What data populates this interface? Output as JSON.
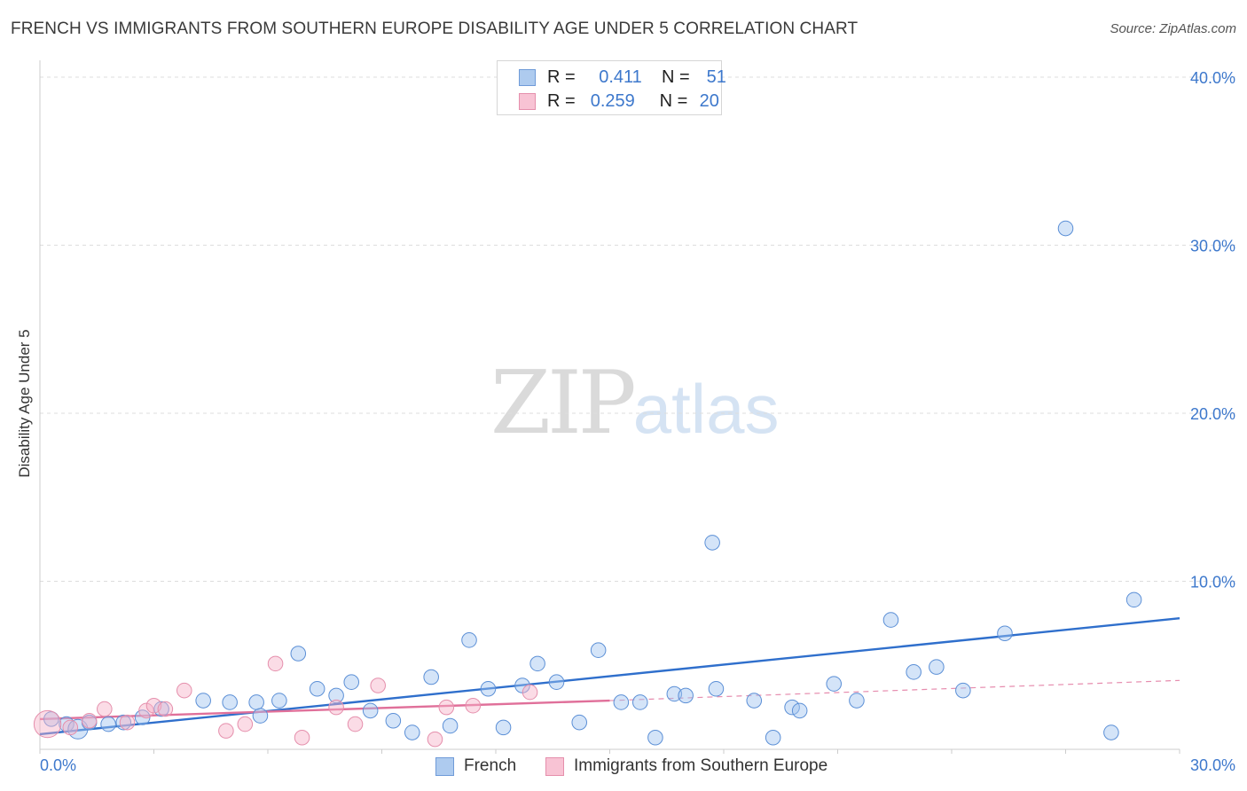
{
  "chart_data": {
    "type": "scatter",
    "title": "FRENCH VS IMMIGRANTS FROM SOUTHERN EUROPE DISABILITY AGE UNDER 5 CORRELATION CHART",
    "source": "Source: ZipAtlas.com",
    "xlabel": "",
    "ylabel": "Disability Age Under 5",
    "xlim": [
      0,
      30
    ],
    "ylim": [
      0,
      40
    ],
    "x_tick_labels": [
      "0.0%",
      "30.0%"
    ],
    "y_ticks": [
      10,
      20,
      30,
      40
    ],
    "y_tick_labels": [
      "10.0%",
      "20.0%",
      "30.0%",
      "40.0%"
    ],
    "grid": true,
    "watermark": {
      "zip": "ZIP",
      "atlas": "atlas"
    },
    "legend_top": [
      {
        "r_label": "R =",
        "r_value": "0.411",
        "n_label": "N =",
        "n_value": "51"
      },
      {
        "r_label": "R =",
        "r_value": "0.259",
        "n_label": "N =",
        "n_value": "20"
      }
    ],
    "series": [
      {
        "name": "French",
        "color": "#5b8fd6",
        "fill": "rgba(160,196,240,0.45)",
        "line_color": "#2f6fcc",
        "trend": {
          "x0": 0,
          "y0": 0.9,
          "x1": 30,
          "y1": 7.8
        },
        "points": [
          [
            0.3,
            1.8
          ],
          [
            0.7,
            1.5
          ],
          [
            1.0,
            1.2
          ],
          [
            1.3,
            1.6
          ],
          [
            1.8,
            1.5
          ],
          [
            2.2,
            1.6
          ],
          [
            2.7,
            1.9
          ],
          [
            3.2,
            2.4
          ],
          [
            4.3,
            2.9
          ],
          [
            5.0,
            2.8
          ],
          [
            5.8,
            2.0
          ],
          [
            5.7,
            2.8
          ],
          [
            6.3,
            2.9
          ],
          [
            6.8,
            5.7
          ],
          [
            7.3,
            3.6
          ],
          [
            7.8,
            3.2
          ],
          [
            8.2,
            4.0
          ],
          [
            8.7,
            2.3
          ],
          [
            9.3,
            1.7
          ],
          [
            9.8,
            1.0
          ],
          [
            10.3,
            4.3
          ],
          [
            10.8,
            1.4
          ],
          [
            11.3,
            6.5
          ],
          [
            11.8,
            3.6
          ],
          [
            12.2,
            1.3
          ],
          [
            12.7,
            3.8
          ],
          [
            13.1,
            5.1
          ],
          [
            13.6,
            4.0
          ],
          [
            14.2,
            1.6
          ],
          [
            14.7,
            5.9
          ],
          [
            15.3,
            2.8
          ],
          [
            15.8,
            2.8
          ],
          [
            16.2,
            0.7
          ],
          [
            16.7,
            3.3
          ],
          [
            17.0,
            3.2
          ],
          [
            17.7,
            12.3
          ],
          [
            17.8,
            3.6
          ],
          [
            18.8,
            2.9
          ],
          [
            19.3,
            0.7
          ],
          [
            19.8,
            2.5
          ],
          [
            20.0,
            2.3
          ],
          [
            20.9,
            3.9
          ],
          [
            21.5,
            2.9
          ],
          [
            22.4,
            7.7
          ],
          [
            23.0,
            4.6
          ],
          [
            23.6,
            4.9
          ],
          [
            24.3,
            3.5
          ],
          [
            25.4,
            6.9
          ],
          [
            27.0,
            31.0
          ],
          [
            28.2,
            1.0
          ],
          [
            28.8,
            8.9
          ]
        ],
        "sizes": [
          12,
          12,
          16,
          12,
          12,
          12,
          12,
          12,
          12,
          12,
          12,
          12,
          12,
          12,
          12,
          12,
          12,
          12,
          12,
          12,
          12,
          12,
          12,
          12,
          12,
          12,
          12,
          12,
          12,
          12,
          12,
          12,
          12,
          12,
          12,
          12,
          12,
          12,
          12,
          12,
          12,
          12,
          12,
          12,
          12,
          12,
          12,
          12,
          12,
          12,
          12
        ]
      },
      {
        "name": "Immigrants from Southern Europe",
        "color": "#e58fac",
        "fill": "rgba(246,178,200,0.45)",
        "line_color": "#e0709a",
        "trend": {
          "x0": 0,
          "y0": 1.8,
          "x1": 15.0,
          "y1": 2.9
        },
        "trend_dashed": {
          "x0": 15.0,
          "y0": 2.9,
          "x1": 30,
          "y1": 4.1
        },
        "points": [
          [
            0.2,
            1.5
          ],
          [
            0.8,
            1.3
          ],
          [
            1.3,
            1.7
          ],
          [
            1.7,
            2.4
          ],
          [
            2.3,
            1.6
          ],
          [
            2.8,
            2.3
          ],
          [
            3.0,
            2.6
          ],
          [
            3.3,
            2.4
          ],
          [
            3.8,
            3.5
          ],
          [
            4.9,
            1.1
          ],
          [
            5.4,
            1.5
          ],
          [
            6.2,
            5.1
          ],
          [
            6.9,
            0.7
          ],
          [
            7.8,
            2.5
          ],
          [
            8.3,
            1.5
          ],
          [
            8.9,
            3.8
          ],
          [
            10.4,
            0.6
          ],
          [
            10.7,
            2.5
          ],
          [
            11.4,
            2.6
          ],
          [
            12.9,
            3.4
          ]
        ],
        "sizes": [
          22,
          12,
          12,
          12,
          12,
          12,
          12,
          12,
          12,
          12,
          12,
          12,
          12,
          12,
          12,
          12,
          12,
          12,
          12,
          12
        ]
      }
    ]
  }
}
